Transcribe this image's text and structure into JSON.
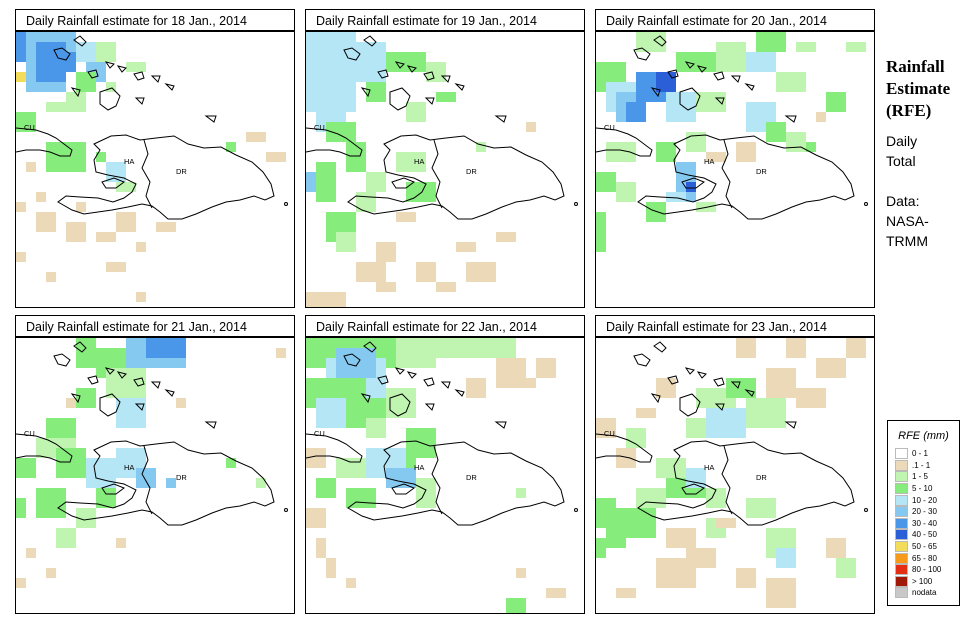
{
  "panels": [
    {
      "title": "Daily Rainfall estimate for  18 Jan., 2014"
    },
    {
      "title": "Daily Rainfall estimate for  19 Jan., 2014"
    },
    {
      "title": "Daily Rainfall estimate for  20 Jan., 2014"
    },
    {
      "title": "Daily Rainfall estimate for  21 Jan., 2014"
    },
    {
      "title": "Daily Rainfall estimate for  22 Jan., 2014"
    },
    {
      "title": "Daily Rainfall estimate for  23 Jan., 2014"
    }
  ],
  "map_labels": {
    "cu": "CU",
    "ha": "HA",
    "dr": "DR"
  },
  "side": {
    "title_line1": "Rainfall",
    "title_line2": "Estimate",
    "title_line3": "(RFE)",
    "daily": "Daily",
    "total": "Total",
    "data_label": "Data:",
    "source_line1": "NASA-",
    "source_line2": "TRMM"
  },
  "legend": {
    "title": "RFE (mm)",
    "items": [
      {
        "label": "0 - 1",
        "color": "#ffffff"
      },
      {
        "label": ".1 - 1",
        "color": "#ecd9b8"
      },
      {
        "label": "1 - 5",
        "color": "#bff5b0"
      },
      {
        "label": "5 - 10",
        "color": "#86ec7c"
      },
      {
        "label": "10 - 20",
        "color": "#b5e6f5"
      },
      {
        "label": "20 - 30",
        "color": "#86c9f0"
      },
      {
        "label": "30 - 40",
        "color": "#4a96e8"
      },
      {
        "label": "40 - 50",
        "color": "#2a5fd8"
      },
      {
        "label": "50 - 65",
        "color": "#f2dc5a"
      },
      {
        "label": "65 - 80",
        "color": "#f79a1a"
      },
      {
        "label": "80 - 100",
        "color": "#e42f14"
      },
      {
        "label": "> 100",
        "color": "#a01808"
      },
      {
        "label": "nodata",
        "color": "#c8c8c8"
      }
    ]
  }
}
